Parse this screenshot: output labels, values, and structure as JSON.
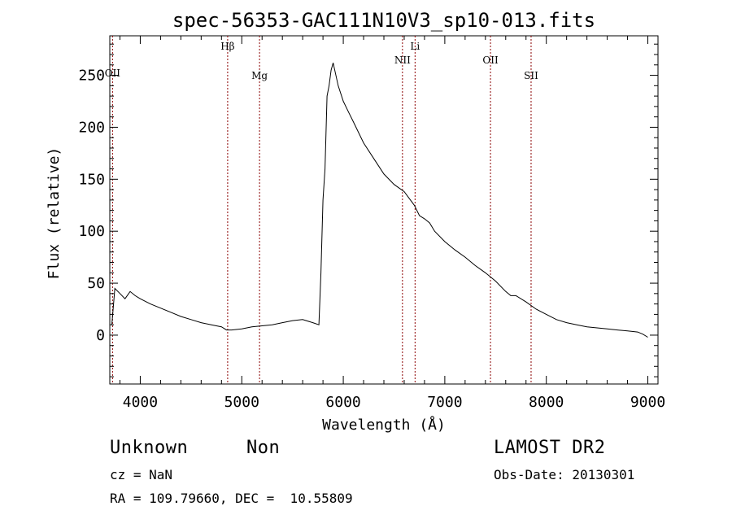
{
  "chart_data": {
    "type": "line",
    "title": "spec-56353-GAC111N10V3_sp10-013.fits",
    "xlabel": "Wavelength (Å)",
    "ylabel": "Flux (relative)",
    "xlim": [
      3700,
      9100
    ],
    "ylim": [
      -47,
      288
    ],
    "xticks": [
      "4000",
      "5000",
      "6000",
      "7000",
      "8000",
      "9000"
    ],
    "yticks": [
      "0",
      "50",
      "100",
      "150",
      "200",
      "250"
    ],
    "grid": false,
    "line_color": "#000000",
    "marker_color": "#8b0000",
    "lines": [
      {
        "label": "OII",
        "wavelength": 3727
      },
      {
        "label": "Hβ",
        "wavelength": 4861
      },
      {
        "label": "Mg",
        "wavelength": 5175
      },
      {
        "label": "NII",
        "wavelength": 6583
      },
      {
        "label": "Li",
        "wavelength": 6707
      },
      {
        "label": "OII",
        "wavelength": 7450
      },
      {
        "label": "SII",
        "wavelength": 7850
      }
    ],
    "series": [
      {
        "x": [
          3720,
          3750,
          3800,
          3850,
          3900,
          3950,
          4000,
          4100,
          4200,
          4300,
          4400,
          4500,
          4600,
          4700,
          4800,
          4850,
          4900,
          5000,
          5100,
          5200,
          5300,
          5400,
          5500,
          5600,
          5700,
          5760,
          5780,
          5800,
          5820,
          5840,
          5860,
          5880,
          5900,
          5950,
          6000,
          6050,
          6100,
          6200,
          6300,
          6400,
          6500,
          6600,
          6700,
          6750,
          6800,
          6850,
          6900,
          7000,
          7100,
          7200,
          7300,
          7400,
          7500,
          7600,
          7650,
          7700,
          7800,
          7900,
          8000,
          8100,
          8200,
          8300,
          8400,
          8500,
          8600,
          8700,
          8800,
          8900,
          8950,
          9000
        ],
        "y": [
          10,
          45,
          40,
          35,
          42,
          38,
          35,
          30,
          26,
          22,
          18,
          15,
          12,
          10,
          8,
          5,
          5,
          6,
          8,
          9,
          10,
          12,
          14,
          15,
          12,
          10,
          60,
          130,
          160,
          230,
          240,
          255,
          262,
          240,
          225,
          215,
          205,
          185,
          170,
          155,
          145,
          138,
          125,
          115,
          112,
          108,
          100,
          90,
          82,
          75,
          67,
          60,
          52,
          42,
          38,
          38,
          32,
          25,
          20,
          15,
          12,
          10,
          8,
          7,
          6,
          5,
          4,
          3,
          1,
          -2
        ]
      }
    ]
  },
  "info": {
    "object_class": "Unknown",
    "subclass": "Non",
    "survey": "LAMOST DR2",
    "redshift": "cz = NaN",
    "obs_date": "Obs-Date: 20130301",
    "coords": "RA = 109.79660, DEC =  10.55809"
  }
}
